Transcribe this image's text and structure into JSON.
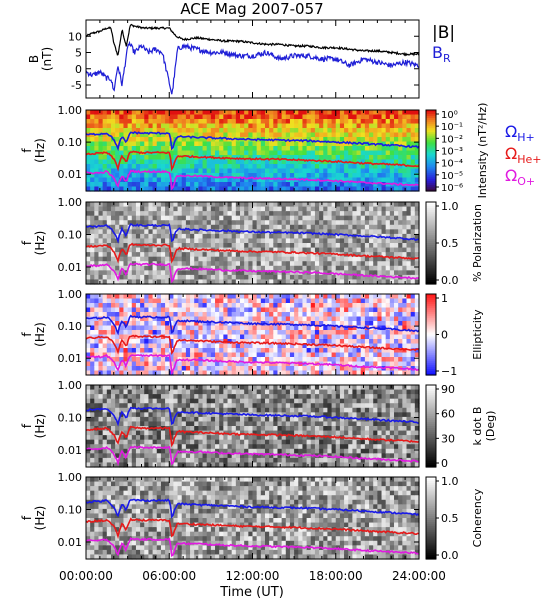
{
  "chart_data": {
    "title": "ACE Mag 2007-057",
    "type": "multi-panel time series and spectrograms",
    "xlabel": "Time (UT)",
    "x_range_hours": [
      0,
      24
    ],
    "x_ticks": [
      "00:00:00",
      "06:00:00",
      "12:00:00",
      "18:00:00",
      "24:00:00"
    ],
    "panels": [
      {
        "type": "line",
        "ylabel": "B",
        "yunit": "(nT)",
        "ylim": [
          -9,
          15
        ],
        "yticks": [
          "10",
          "5",
          "0",
          "-5"
        ],
        "series": [
          {
            "name": "|B|",
            "color": "#000000",
            "points": [
              [
                0,
                10
              ],
              [
                0.5,
                11
              ],
              [
                1,
                11.5
              ],
              [
                1.5,
                12.5
              ],
              [
                1.8,
                12.5
              ],
              [
                2,
                8
              ],
              [
                2.3,
                4
              ],
              [
                2.6,
                12
              ],
              [
                2.9,
                7
              ],
              [
                3.2,
                13.5
              ],
              [
                3.6,
                13
              ],
              [
                4.2,
                12.5
              ],
              [
                5,
                12.5
              ],
              [
                6,
                12.5
              ],
              [
                6.5,
                10
              ],
              [
                7,
                9
              ],
              [
                8,
                9.5
              ],
              [
                9,
                9
              ],
              [
                10,
                8.5
              ],
              [
                11,
                8.5
              ],
              [
                12,
                8
              ],
              [
                13,
                7.5
              ],
              [
                14,
                7.5
              ],
              [
                15,
                7
              ],
              [
                16,
                7
              ],
              [
                17,
                6.5
              ],
              [
                18,
                6.5
              ],
              [
                19,
                6
              ],
              [
                20,
                5.5
              ],
              [
                21,
                5.5
              ],
              [
                22,
                5
              ],
              [
                23,
                4.5
              ],
              [
                24,
                4.5
              ]
            ]
          },
          {
            "name": "B_R",
            "color": "#1f1fd6",
            "points": [
              [
                0,
                -1
              ],
              [
                0.5,
                -2
              ],
              [
                1,
                -1
              ],
              [
                1.5,
                -3
              ],
              [
                1.8,
                -3
              ],
              [
                2,
                -7
              ],
              [
                2.3,
                1
              ],
              [
                2.6,
                -5
              ],
              [
                2.9,
                4
              ],
              [
                3.1,
                8
              ],
              [
                3.5,
                5
              ],
              [
                4,
                7
              ],
              [
                4.5,
                5
              ],
              [
                5,
                6
              ],
              [
                5.5,
                5
              ],
              [
                6.2,
                -8
              ],
              [
                6.6,
                6
              ],
              [
                7,
                7
              ],
              [
                8,
                6
              ],
              [
                9,
                5
              ],
              [
                10,
                5
              ],
              [
                11,
                4
              ],
              [
                12,
                4
              ],
              [
                13,
                5
              ],
              [
                14,
                3
              ],
              [
                15,
                4
              ],
              [
                16,
                4
              ],
              [
                17,
                3
              ],
              [
                18,
                3
              ],
              [
                19,
                1
              ],
              [
                20,
                3
              ],
              [
                21,
                2
              ],
              [
                22,
                1
              ],
              [
                23,
                2
              ],
              [
                24,
                1
              ]
            ]
          }
        ]
      },
      {
        "type": "heatmap",
        "ylabel": "f",
        "yunit": "(Hz)",
        "yscale": "log",
        "ylim": [
          0.003,
          1.0
        ],
        "yticks": [
          "1.00",
          "0.10",
          "0.01"
        ],
        "colorbar_label": "Intensity (nT²/Hz)",
        "colorbar_ticks": [
          "10⁰",
          "10⁻¹",
          "10⁻²",
          "10⁻³",
          "10⁻⁴",
          "10⁻⁵",
          "10⁻⁶"
        ]
      },
      {
        "type": "heatmap",
        "ylabel": "f",
        "yunit": "(Hz)",
        "yscale": "log",
        "ylim": [
          0.003,
          1.0
        ],
        "yticks": [
          "1.00",
          "0.10",
          "0.01"
        ],
        "colorbar_label": "% Polarization",
        "colorbar_ticks": [
          "1.0",
          "0.5",
          "0.0"
        ]
      },
      {
        "type": "heatmap",
        "ylabel": "f",
        "yunit": "(Hz)",
        "yscale": "log",
        "ylim": [
          0.003,
          1.0
        ],
        "yticks": [
          "1.00",
          "0.10",
          "0.01"
        ],
        "colorbar_label": "Ellipticity",
        "colorbar_ticks": [
          "1",
          "0",
          "−1"
        ]
      },
      {
        "type": "heatmap",
        "ylabel": "f",
        "yunit": "(Hz)",
        "yscale": "log",
        "ylim": [
          0.003,
          1.0
        ],
        "yticks": [
          "1.00",
          "0.10",
          "0.01"
        ],
        "colorbar_label": "k dot B",
        "colorbar_unit": "(Deg)",
        "colorbar_ticks": [
          "90",
          "60",
          "30",
          "0"
        ]
      },
      {
        "type": "heatmap",
        "ylabel": "f",
        "yunit": "(Hz)",
        "yscale": "log",
        "ylim": [
          0.003,
          1.0
        ],
        "yticks": [
          "1.00",
          "0.10",
          "0.01"
        ],
        "colorbar_label": "Coherency",
        "colorbar_ticks": [
          "1.0",
          "0.5",
          "0.0"
        ]
      }
    ],
    "gyrofrequency_overlays": [
      {
        "name": "ΩH+",
        "color": "#1a1ae6",
        "points": [
          [
            0,
            0.17
          ],
          [
            1,
            0.18
          ],
          [
            1.5,
            0.19
          ],
          [
            2,
            0.12
          ],
          [
            2.3,
            0.06
          ],
          [
            2.6,
            0.15
          ],
          [
            2.9,
            0.09
          ],
          [
            3.2,
            0.2
          ],
          [
            4,
            0.19
          ],
          [
            5,
            0.19
          ],
          [
            6,
            0.19
          ],
          [
            6.2,
            0.05
          ],
          [
            6.6,
            0.15
          ],
          [
            8,
            0.14
          ],
          [
            10,
            0.13
          ],
          [
            12,
            0.12
          ],
          [
            14,
            0.115
          ],
          [
            16,
            0.11
          ],
          [
            18,
            0.1
          ],
          [
            20,
            0.09
          ],
          [
            22,
            0.08
          ],
          [
            24,
            0.07
          ]
        ]
      },
      {
        "name": "ΩHe+",
        "color": "#e61a1a",
        "points": [
          [
            0,
            0.042
          ],
          [
            1,
            0.045
          ],
          [
            1.5,
            0.047
          ],
          [
            2,
            0.03
          ],
          [
            2.3,
            0.015
          ],
          [
            2.6,
            0.037
          ],
          [
            2.9,
            0.022
          ],
          [
            3.2,
            0.05
          ],
          [
            4,
            0.047
          ],
          [
            5,
            0.047
          ],
          [
            6,
            0.047
          ],
          [
            6.2,
            0.012
          ],
          [
            6.6,
            0.037
          ],
          [
            8,
            0.035
          ],
          [
            10,
            0.032
          ],
          [
            12,
            0.03
          ],
          [
            14,
            0.029
          ],
          [
            16,
            0.027
          ],
          [
            18,
            0.025
          ],
          [
            20,
            0.022
          ],
          [
            22,
            0.02
          ],
          [
            24,
            0.018
          ]
        ]
      },
      {
        "name": "ΩO+",
        "color": "#e01ae0",
        "points": [
          [
            0,
            0.011
          ],
          [
            1,
            0.011
          ],
          [
            1.5,
            0.012
          ],
          [
            2,
            0.0075
          ],
          [
            2.3,
            0.004
          ],
          [
            2.6,
            0.009
          ],
          [
            2.9,
            0.0055
          ],
          [
            3.2,
            0.0125
          ],
          [
            4,
            0.012
          ],
          [
            5,
            0.012
          ],
          [
            6,
            0.012
          ],
          [
            6.2,
            0.003
          ],
          [
            6.6,
            0.009
          ],
          [
            8,
            0.0088
          ],
          [
            10,
            0.008
          ],
          [
            12,
            0.0075
          ],
          [
            14,
            0.0072
          ],
          [
            16,
            0.0068
          ],
          [
            18,
            0.0062
          ],
          [
            20,
            0.0055
          ],
          [
            22,
            0.005
          ],
          [
            24,
            0.0045
          ]
        ]
      }
    ]
  }
}
